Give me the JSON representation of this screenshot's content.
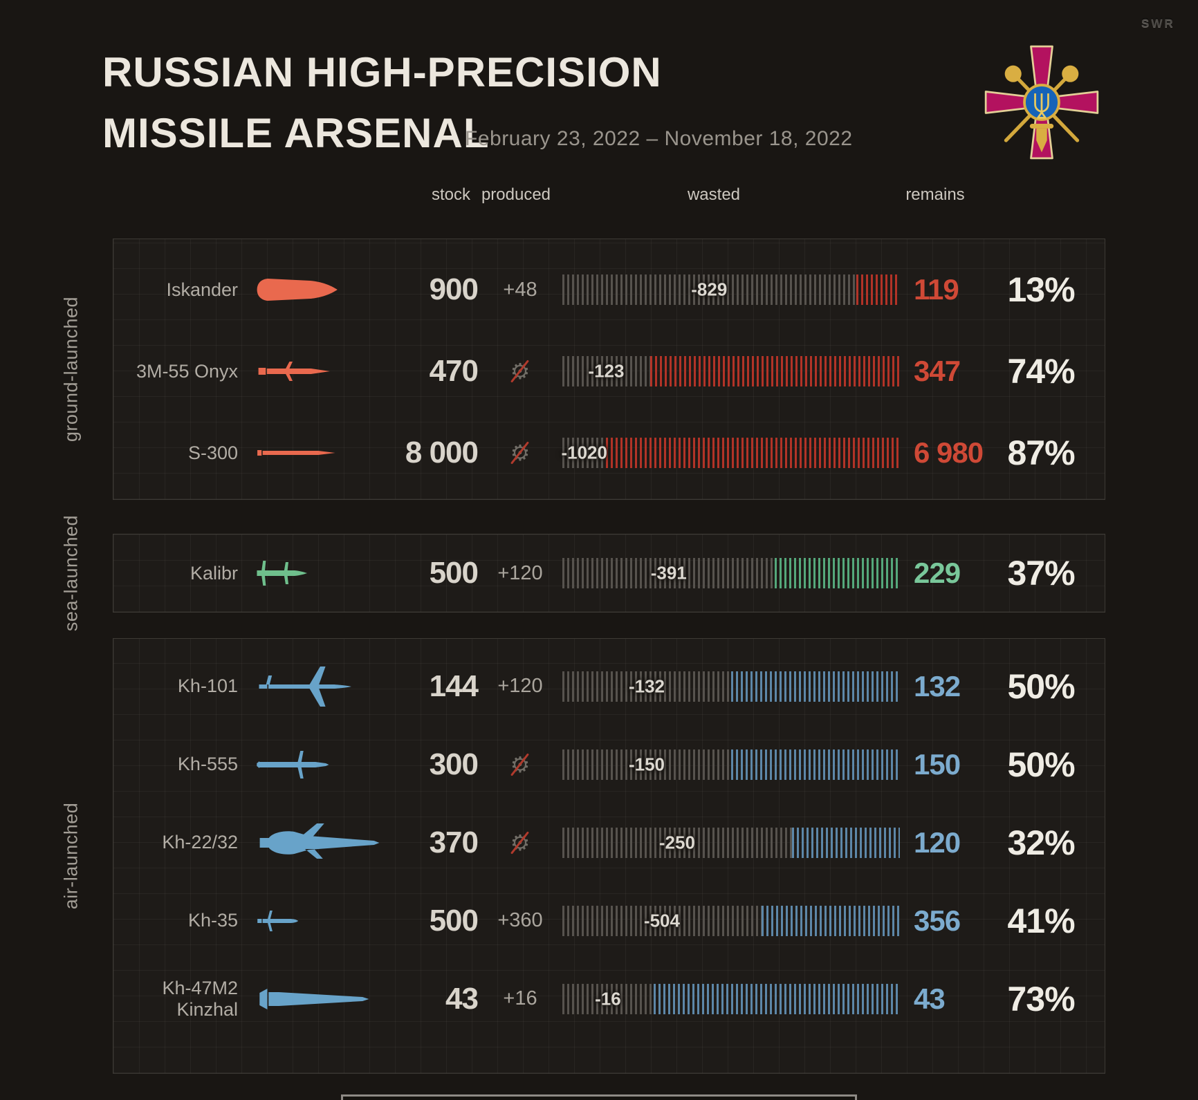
{
  "watermark": "SWR",
  "header": {
    "title_line1": "RUSSIAN HIGH-PRECISION",
    "title_line2": "MISSILE ARSENAL",
    "date_range": "February 23, 2022 – November 18, 2022",
    "emblem": "ukraine-ministry-of-defence-emblem"
  },
  "columns": {
    "stock": "stock",
    "produced": "produced",
    "wasted": "wasted",
    "remains": "remains"
  },
  "colors": {
    "background": "#191613",
    "panel": "#1e1b18",
    "ground_icon": "#e9694e",
    "ground_bar": "#b23327",
    "ground_text": "#cf4936",
    "sea_icon": "#6fbf8c",
    "sea_bar": "#55a87b",
    "sea_text": "#79c79a",
    "air_icon": "#68a3c9",
    "air_bar": "#5d87a8",
    "air_text": "#7cabce",
    "wasted_bar": "#57534e",
    "stock_text": "#d9d4cb",
    "percent_text": "#efece4"
  },
  "groups": [
    {
      "label": "ground-launched",
      "key": "ground",
      "rows": [
        {
          "name": "Iskander",
          "icon": "iskander",
          "stock": "900",
          "produced": "+48",
          "no_production": false,
          "wasted": "-829",
          "remains": "119",
          "percent": "13%",
          "remains_pct": 13
        },
        {
          "name": "3M-55 Onyx",
          "icon": "onyx",
          "stock": "470",
          "produced": "",
          "no_production": true,
          "wasted": "-123",
          "remains": "347",
          "percent": "74%",
          "remains_pct": 74
        },
        {
          "name": "S-300",
          "icon": "s300",
          "stock": "8 000",
          "produced": "",
          "no_production": true,
          "wasted": "-1020",
          "remains": "6 980",
          "percent": "87%",
          "remains_pct": 87
        }
      ]
    },
    {
      "label": "sea-launched",
      "key": "sea",
      "rows": [
        {
          "name": "Kalibr",
          "icon": "kalibr",
          "stock": "500",
          "produced": "+120",
          "no_production": false,
          "wasted": "-391",
          "remains": "229",
          "percent": "37%",
          "remains_pct": 37
        }
      ]
    },
    {
      "label": "air-launched",
      "key": "air",
      "rows": [
        {
          "name": "Kh-101",
          "icon": "kh101",
          "stock": "144",
          "produced": "+120",
          "no_production": false,
          "wasted": "-132",
          "remains": "132",
          "percent": "50%",
          "remains_pct": 50
        },
        {
          "name": "Kh-555",
          "icon": "kh555",
          "stock": "300",
          "produced": "",
          "no_production": true,
          "wasted": "-150",
          "remains": "150",
          "percent": "50%",
          "remains_pct": 50
        },
        {
          "name": "Kh-22/32",
          "icon": "kh2232",
          "stock": "370",
          "produced": "",
          "no_production": true,
          "wasted": "-250",
          "remains": "120",
          "percent": "32%",
          "remains_pct": 32
        },
        {
          "name": "Kh-35",
          "icon": "kh35",
          "stock": "500",
          "produced": "+360",
          "no_production": false,
          "wasted": "-504",
          "remains": "356",
          "percent": "41%",
          "remains_pct": 41
        },
        {
          "name": "Kh-47M2\nKinzhal",
          "icon": "kinzhal",
          "stock": "43",
          "produced": "+16",
          "no_production": false,
          "wasted": "-16",
          "remains": "43",
          "percent": "73%",
          "remains_pct": 73
        }
      ]
    }
  ],
  "chart_data": {
    "type": "bar",
    "title": "RUSSIAN HIGH-PRECISION MISSILE ARSENAL",
    "subtitle": "February 23, 2022 – November 18, 2022",
    "categories": [
      "Iskander",
      "3M-55 Onyx",
      "S-300",
      "Kalibr",
      "Kh-101",
      "Kh-555",
      "Kh-22/32",
      "Kh-35",
      "Kh-47M2 Kinzhal"
    ],
    "category_groups": [
      "ground-launched",
      "ground-launched",
      "ground-launched",
      "sea-launched",
      "air-launched",
      "air-launched",
      "air-launched",
      "air-launched",
      "air-launched"
    ],
    "series": [
      {
        "name": "stock",
        "values": [
          900,
          470,
          8000,
          500,
          144,
          300,
          370,
          500,
          43
        ]
      },
      {
        "name": "produced",
        "values": [
          48,
          0,
          0,
          120,
          120,
          0,
          0,
          360,
          16
        ]
      },
      {
        "name": "wasted",
        "values": [
          829,
          123,
          1020,
          391,
          132,
          150,
          250,
          504,
          16
        ]
      },
      {
        "name": "remains",
        "values": [
          119,
          347,
          6980,
          229,
          132,
          150,
          120,
          356,
          43
        ]
      },
      {
        "name": "remains_percent",
        "values": [
          13,
          74,
          87,
          37,
          50,
          50,
          32,
          41,
          73
        ]
      }
    ],
    "xlabel": "",
    "ylabel": "",
    "legend_position": "top-columns",
    "grid": true
  }
}
